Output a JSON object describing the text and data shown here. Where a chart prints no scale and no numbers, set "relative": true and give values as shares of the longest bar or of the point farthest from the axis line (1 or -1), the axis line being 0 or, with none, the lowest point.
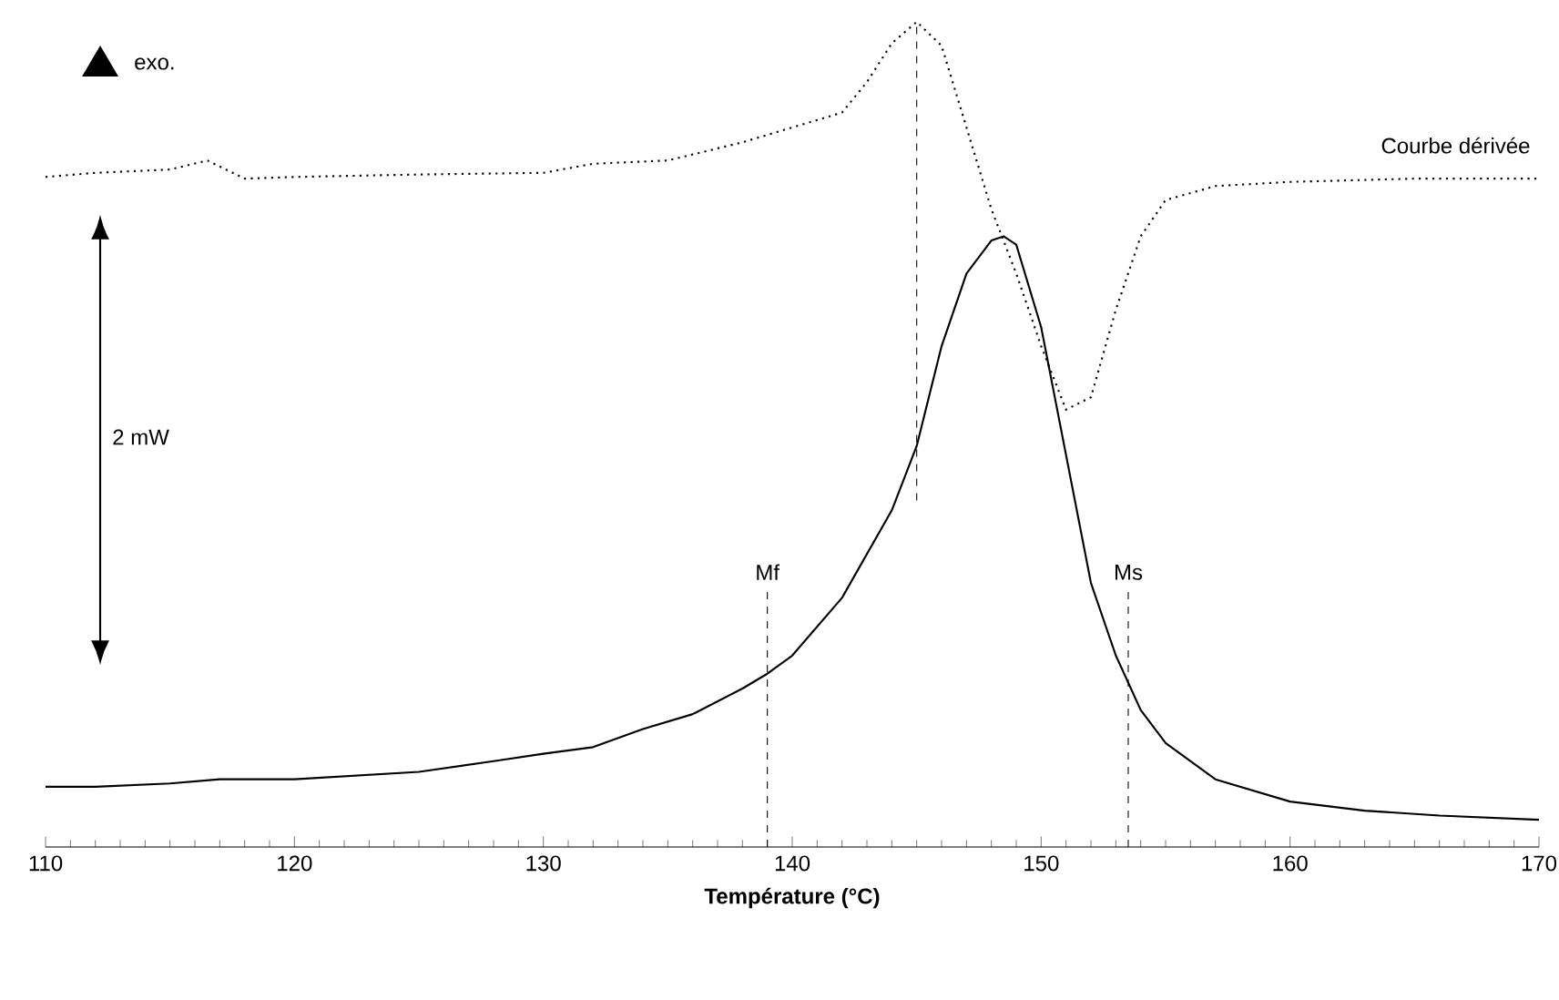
{
  "chart_data": {
    "type": "line",
    "relative": true,
    "xlabel": "Température (°C)",
    "xlim": [
      110,
      170
    ],
    "xticks": [
      110,
      120,
      130,
      140,
      150,
      160,
      170
    ],
    "annotations": [
      "exo.",
      "2 mW"
    ],
    "ref_lines": [
      {
        "axis": "x",
        "value": 139,
        "label": "Mf",
        "line_style": "dashed",
        "color": "#000000"
      },
      {
        "axis": "x",
        "value": 153.5,
        "label": "Ms",
        "line_style": "dashed",
        "color": "#000000"
      },
      {
        "axis": "x",
        "value": 145,
        "line_style": "dashed",
        "color": "#000000"
      }
    ],
    "series": [
      {
        "color": "#000000",
        "line_style": "solid",
        "x": [
          110,
          112,
          115,
          117,
          120,
          125,
          128,
          130,
          132,
          134,
          136,
          138,
          139,
          140,
          142,
          144,
          145,
          146,
          147,
          148,
          148.5,
          149,
          150,
          151,
          152,
          153,
          154,
          155,
          157,
          160,
          163,
          166,
          170
        ],
        "values": [
          0.073,
          0.073,
          0.077,
          0.082,
          0.082,
          0.091,
          0.104,
          0.113,
          0.121,
          0.143,
          0.161,
          0.192,
          0.21,
          0.232,
          0.302,
          0.408,
          0.486,
          0.607,
          0.695,
          0.735,
          0.74,
          0.73,
          0.63,
          0.475,
          0.32,
          0.232,
          0.166,
          0.126,
          0.082,
          0.055,
          0.044,
          0.038,
          0.033
        ]
      },
      {
        "name": "Courbe dérivée",
        "color": "#000000",
        "line_style": "dotted",
        "x": [
          110,
          112,
          115,
          116.5,
          118,
          120,
          125,
          130,
          132,
          135,
          138,
          140,
          142,
          143,
          144,
          145,
          146,
          147,
          148,
          149,
          150,
          151,
          152,
          153,
          154,
          155,
          157,
          160,
          165,
          170
        ],
        "values": [
          0.812,
          0.817,
          0.821,
          0.832,
          0.81,
          0.812,
          0.815,
          0.817,
          0.828,
          0.832,
          0.854,
          0.872,
          0.89,
          0.927,
          0.974,
          1.0,
          0.971,
          0.872,
          0.773,
          0.695,
          0.607,
          0.53,
          0.545,
          0.651,
          0.74,
          0.784,
          0.801,
          0.806,
          0.81,
          0.81
        ]
      }
    ]
  }
}
